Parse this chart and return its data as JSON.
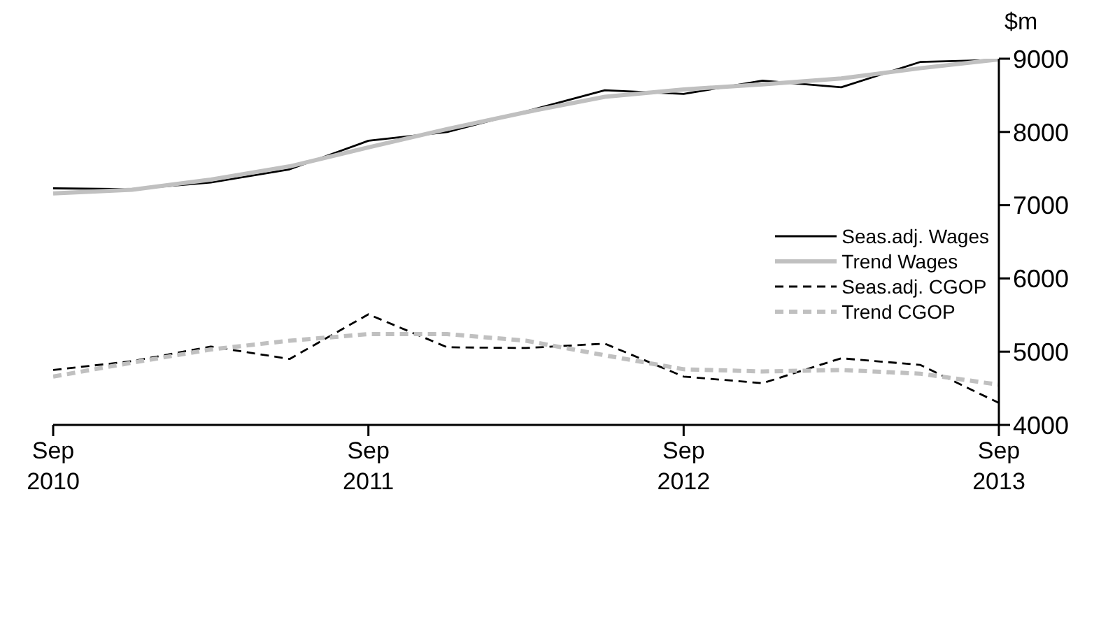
{
  "chart_data": {
    "type": "line",
    "ylabel": "$m",
    "x": [
      "2010-09",
      "2010-12",
      "2011-03",
      "2011-06",
      "2011-09",
      "2011-12",
      "2012-03",
      "2012-06",
      "2012-09",
      "2012-12",
      "2013-03",
      "2013-06",
      "2013-09"
    ],
    "series": [
      {
        "name": "Seas.adj. Wages",
        "color": "#000000",
        "line_style": "solid",
        "values": [
          7230,
          7220,
          7310,
          7490,
          7880,
          8000,
          8280,
          8570,
          8520,
          8700,
          8610,
          8955,
          8985
        ]
      },
      {
        "name": "Trend Wages",
        "color": "#c0c0c0",
        "line_style": "solid",
        "values": [
          7160,
          7210,
          7350,
          7530,
          7790,
          8040,
          8270,
          8480,
          8580,
          8650,
          8730,
          8870,
          8990
        ]
      },
      {
        "name": "Seas.adj. CGOP",
        "color": "#000000",
        "line_style": "dashed",
        "values": [
          4750,
          4870,
          5070,
          4900,
          5510,
          5060,
          5050,
          5110,
          4660,
          4570,
          4910,
          4820,
          4300
        ]
      },
      {
        "name": "Trend CGOP",
        "color": "#c0c0c0",
        "line_style": "dashed",
        "values": [
          4660,
          4850,
          5030,
          5150,
          5240,
          5240,
          5150,
          4950,
          4760,
          4730,
          4750,
          4700,
          4550
        ]
      }
    ],
    "ylim": [
      4000,
      9000
    ],
    "yticks": [
      4000,
      5000,
      6000,
      7000,
      8000,
      9000
    ],
    "xlim": [
      "2010-09",
      "2013-09"
    ],
    "xticks": [
      {
        "value": "2010-09",
        "label": "Sep\n2010"
      },
      {
        "value": "2011-09",
        "label": "Sep\n2011"
      },
      {
        "value": "2012-09",
        "label": "Sep\n2012"
      },
      {
        "value": "2013-09",
        "label": "Sep\n2013"
      }
    ],
    "legend": "right",
    "grid": false,
    "marker": "none"
  }
}
